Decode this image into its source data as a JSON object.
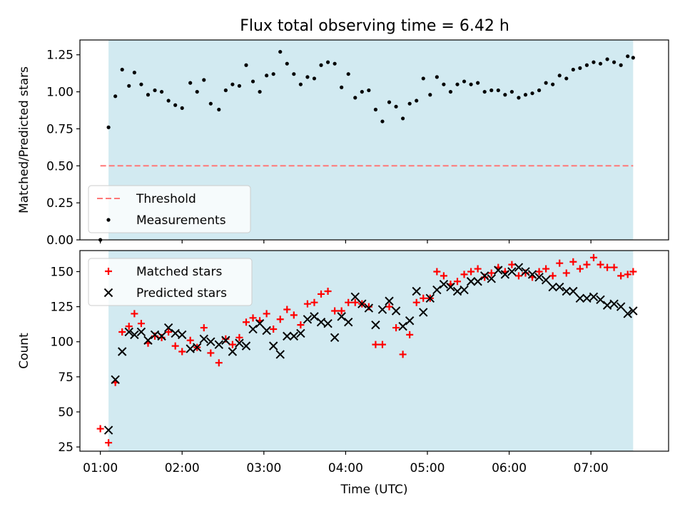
{
  "figure": {
    "title": "Flux total observing time = 6.42 h"
  },
  "chart_data": [
    {
      "type": "scatter",
      "panel": "top",
      "title": "Flux total observing time = 6.42 h",
      "xlabel": "",
      "ylabel": "Matched/Predicted stars",
      "x_axis_type": "time",
      "xlim": [
        "00:45",
        "07:57"
      ],
      "ylim": [
        0.0,
        1.35
      ],
      "yticks": [
        0.0,
        0.25,
        0.5,
        0.75,
        1.0,
        1.25
      ],
      "ytick_labels": [
        "0.00",
        "0.25",
        "0.50",
        "0.75",
        "1.00",
        "1.25"
      ],
      "xticks": [
        "01:00",
        "02:00",
        "03:00",
        "04:00",
        "05:00",
        "06:00",
        "07:00"
      ],
      "grid": false,
      "legend_position": "lower-left",
      "observing_window": {
        "start": "01:06",
        "end": "07:31",
        "color": "#add8e6"
      },
      "series": [
        {
          "name": "Threshold",
          "kind": "hline",
          "color": "#ff7777",
          "style": "dashed",
          "y": 0.5,
          "x_range": [
            "01:00",
            "07:31"
          ]
        },
        {
          "name": "Measurements",
          "kind": "scatter",
          "marker": "dot",
          "color": "#000000",
          "points": [
            [
              "01:00",
              0.0
            ],
            [
              "01:06",
              0.76
            ],
            [
              "01:11",
              0.97
            ],
            [
              "01:16",
              1.15
            ],
            [
              "01:21",
              1.04
            ],
            [
              "01:25",
              1.13
            ],
            [
              "01:30",
              1.05
            ],
            [
              "01:35",
              0.98
            ],
            [
              "01:40",
              1.01
            ],
            [
              "01:45",
              1.0
            ],
            [
              "01:50",
              0.94
            ],
            [
              "01:55",
              0.91
            ],
            [
              "02:00",
              0.89
            ],
            [
              "02:06",
              1.06
            ],
            [
              "02:11",
              1.0
            ],
            [
              "02:16",
              1.08
            ],
            [
              "02:21",
              0.92
            ],
            [
              "02:27",
              0.88
            ],
            [
              "02:32",
              1.01
            ],
            [
              "02:37",
              1.05
            ],
            [
              "02:42",
              1.04
            ],
            [
              "02:47",
              1.18
            ],
            [
              "02:52",
              1.07
            ],
            [
              "02:57",
              1.0
            ],
            [
              "03:02",
              1.11
            ],
            [
              "03:07",
              1.12
            ],
            [
              "03:12",
              1.27
            ],
            [
              "03:17",
              1.19
            ],
            [
              "03:22",
              1.12
            ],
            [
              "03:27",
              1.05
            ],
            [
              "03:32",
              1.1
            ],
            [
              "03:37",
              1.09
            ],
            [
              "03:42",
              1.18
            ],
            [
              "03:47",
              1.2
            ],
            [
              "03:52",
              1.19
            ],
            [
              "03:57",
              1.03
            ],
            [
              "04:02",
              1.12
            ],
            [
              "04:07",
              0.96
            ],
            [
              "04:12",
              1.0
            ],
            [
              "04:17",
              1.01
            ],
            [
              "04:22",
              0.88
            ],
            [
              "04:27",
              0.8
            ],
            [
              "04:32",
              0.93
            ],
            [
              "04:37",
              0.9
            ],
            [
              "04:42",
              0.82
            ],
            [
              "04:47",
              0.92
            ],
            [
              "04:52",
              0.94
            ],
            [
              "04:57",
              1.09
            ],
            [
              "05:02",
              0.98
            ],
            [
              "05:07",
              1.1
            ],
            [
              "05:12",
              1.05
            ],
            [
              "05:17",
              1.0
            ],
            [
              "05:22",
              1.05
            ],
            [
              "05:27",
              1.07
            ],
            [
              "05:32",
              1.05
            ],
            [
              "05:37",
              1.06
            ],
            [
              "05:42",
              1.0
            ],
            [
              "05:47",
              1.01
            ],
            [
              "05:52",
              1.01
            ],
            [
              "05:57",
              0.98
            ],
            [
              "06:02",
              1.0
            ],
            [
              "06:07",
              0.96
            ],
            [
              "06:12",
              0.98
            ],
            [
              "06:17",
              0.99
            ],
            [
              "06:22",
              1.01
            ],
            [
              "06:27",
              1.06
            ],
            [
              "06:32",
              1.05
            ],
            [
              "06:37",
              1.11
            ],
            [
              "06:42",
              1.09
            ],
            [
              "06:47",
              1.15
            ],
            [
              "06:52",
              1.16
            ],
            [
              "06:57",
              1.18
            ],
            [
              "07:02",
              1.2
            ],
            [
              "07:07",
              1.19
            ],
            [
              "07:12",
              1.22
            ],
            [
              "07:17",
              1.2
            ],
            [
              "07:22",
              1.18
            ],
            [
              "07:27",
              1.24
            ],
            [
              "07:31",
              1.23
            ]
          ]
        }
      ]
    },
    {
      "type": "scatter",
      "panel": "bottom",
      "title": "",
      "xlabel": "Time (UTC)",
      "ylabel": "Count",
      "x_axis_type": "time",
      "xlim": [
        "00:45",
        "07:57"
      ],
      "ylim": [
        22,
        165
      ],
      "yticks": [
        25,
        50,
        75,
        100,
        125,
        150
      ],
      "xticks": [
        "01:00",
        "02:00",
        "03:00",
        "04:00",
        "05:00",
        "06:00",
        "07:00"
      ],
      "xtick_labels": [
        "01:00",
        "02:00",
        "03:00",
        "04:00",
        "05:00",
        "06:00",
        "07:00"
      ],
      "grid": false,
      "legend_position": "upper-left",
      "observing_window": {
        "start": "01:06",
        "end": "07:31",
        "color": "#add8e6"
      },
      "series": [
        {
          "name": "Matched stars",
          "kind": "scatter",
          "marker": "plus",
          "color": "#ff0000",
          "points": [
            [
              "01:00",
              38
            ],
            [
              "01:06",
              28
            ],
            [
              "01:11",
              71
            ],
            [
              "01:16",
              107
            ],
            [
              "01:21",
              111
            ],
            [
              "01:25",
              120
            ],
            [
              "01:30",
              113
            ],
            [
              "01:35",
              99
            ],
            [
              "01:40",
              104
            ],
            [
              "01:45",
              103
            ],
            [
              "01:50",
              107
            ],
            [
              "01:55",
              97
            ],
            [
              "02:00",
              93
            ],
            [
              "02:06",
              101
            ],
            [
              "02:11",
              96
            ],
            [
              "02:16",
              110
            ],
            [
              "02:21",
              92
            ],
            [
              "02:27",
              85
            ],
            [
              "02:32",
              102
            ],
            [
              "02:37",
              98
            ],
            [
              "02:42",
              103
            ],
            [
              "02:47",
              114
            ],
            [
              "02:52",
              117
            ],
            [
              "02:57",
              115
            ],
            [
              "03:02",
              120
            ],
            [
              "03:07",
              109
            ],
            [
              "03:12",
              116
            ],
            [
              "03:17",
              123
            ],
            [
              "03:22",
              119
            ],
            [
              "03:27",
              112
            ],
            [
              "03:32",
              127
            ],
            [
              "03:37",
              128
            ],
            [
              "03:42",
              134
            ],
            [
              "03:47",
              136
            ],
            [
              "03:52",
              122
            ],
            [
              "03:57",
              122
            ],
            [
              "04:02",
              128
            ],
            [
              "04:07",
              128
            ],
            [
              "04:12",
              127
            ],
            [
              "04:17",
              125
            ],
            [
              "04:22",
              98
            ],
            [
              "04:27",
              98
            ],
            [
              "04:32",
              125
            ],
            [
              "04:37",
              110
            ],
            [
              "04:42",
              91
            ],
            [
              "04:47",
              105
            ],
            [
              "04:52",
              128
            ],
            [
              "04:57",
              131
            ],
            [
              "05:02",
              131
            ],
            [
              "05:07",
              150
            ],
            [
              "05:12",
              147
            ],
            [
              "05:17",
              141
            ],
            [
              "05:22",
              143
            ],
            [
              "05:27",
              148
            ],
            [
              "05:32",
              150
            ],
            [
              "05:37",
              152
            ],
            [
              "05:42",
              146
            ],
            [
              "05:47",
              149
            ],
            [
              "05:52",
              153
            ],
            [
              "05:57",
              150
            ],
            [
              "06:02",
              155
            ],
            [
              "06:07",
              147
            ],
            [
              "06:12",
              149
            ],
            [
              "06:17",
              146
            ],
            [
              "06:22",
              150
            ],
            [
              "06:27",
              152
            ],
            [
              "06:32",
              147
            ],
            [
              "06:37",
              156
            ],
            [
              "06:42",
              149
            ],
            [
              "06:47",
              157
            ],
            [
              "06:52",
              152
            ],
            [
              "06:57",
              155
            ],
            [
              "07:02",
              160
            ],
            [
              "07:07",
              155
            ],
            [
              "07:12",
              153
            ],
            [
              "07:17",
              153
            ],
            [
              "07:22",
              147
            ],
            [
              "07:27",
              148
            ],
            [
              "07:31",
              150
            ]
          ]
        },
        {
          "name": "Predicted stars",
          "kind": "scatter",
          "marker": "x",
          "color": "#000000",
          "points": [
            [
              "01:06",
              37
            ],
            [
              "01:11",
              73
            ],
            [
              "01:16",
              93
            ],
            [
              "01:21",
              107
            ],
            [
              "01:25",
              105
            ],
            [
              "01:30",
              107
            ],
            [
              "01:35",
              101
            ],
            [
              "01:40",
              105
            ],
            [
              "01:45",
              104
            ],
            [
              "01:50",
              110
            ],
            [
              "01:55",
              106
            ],
            [
              "02:00",
              105
            ],
            [
              "02:06",
              95
            ],
            [
              "02:11",
              96
            ],
            [
              "02:16",
              102
            ],
            [
              "02:21",
              100
            ],
            [
              "02:27",
              98
            ],
            [
              "02:32",
              101
            ],
            [
              "02:37",
              93
            ],
            [
              "02:42",
              99
            ],
            [
              "02:47",
              97
            ],
            [
              "02:52",
              109
            ],
            [
              "02:57",
              113
            ],
            [
              "03:02",
              108
            ],
            [
              "03:07",
              97
            ],
            [
              "03:12",
              91
            ],
            [
              "03:17",
              104
            ],
            [
              "03:22",
              104
            ],
            [
              "03:27",
              106
            ],
            [
              "03:32",
              116
            ],
            [
              "03:37",
              118
            ],
            [
              "03:42",
              114
            ],
            [
              "03:47",
              113
            ],
            [
              "03:52",
              103
            ],
            [
              "03:57",
              118
            ],
            [
              "04:02",
              114
            ],
            [
              "04:07",
              132
            ],
            [
              "04:12",
              127
            ],
            [
              "04:17",
              124
            ],
            [
              "04:22",
              112
            ],
            [
              "04:27",
              123
            ],
            [
              "04:32",
              129
            ],
            [
              "04:37",
              122
            ],
            [
              "04:42",
              111
            ],
            [
              "04:47",
              115
            ],
            [
              "04:52",
              136
            ],
            [
              "04:57",
              121
            ],
            [
              "05:02",
              131
            ],
            [
              "05:07",
              137
            ],
            [
              "05:12",
              141
            ],
            [
              "05:17",
              139
            ],
            [
              "05:22",
              136
            ],
            [
              "05:27",
              137
            ],
            [
              "05:32",
              143
            ],
            [
              "05:37",
              143
            ],
            [
              "05:42",
              147
            ],
            [
              "05:47",
              145
            ],
            [
              "05:52",
              151
            ],
            [
              "05:57",
              148
            ],
            [
              "06:02",
              150
            ],
            [
              "06:07",
              153
            ],
            [
              "06:12",
              150
            ],
            [
              "06:17",
              148
            ],
            [
              "06:22",
              146
            ],
            [
              "06:27",
              144
            ],
            [
              "06:32",
              139
            ],
            [
              "06:37",
              139
            ],
            [
              "06:42",
              136
            ],
            [
              "06:47",
              136
            ],
            [
              "06:52",
              131
            ],
            [
              "06:57",
              131
            ],
            [
              "07:02",
              132
            ],
            [
              "07:07",
              130
            ],
            [
              "07:12",
              126
            ],
            [
              "07:17",
              127
            ],
            [
              "07:22",
              125
            ],
            [
              "07:27",
              120
            ],
            [
              "07:31",
              122
            ]
          ]
        }
      ]
    }
  ]
}
